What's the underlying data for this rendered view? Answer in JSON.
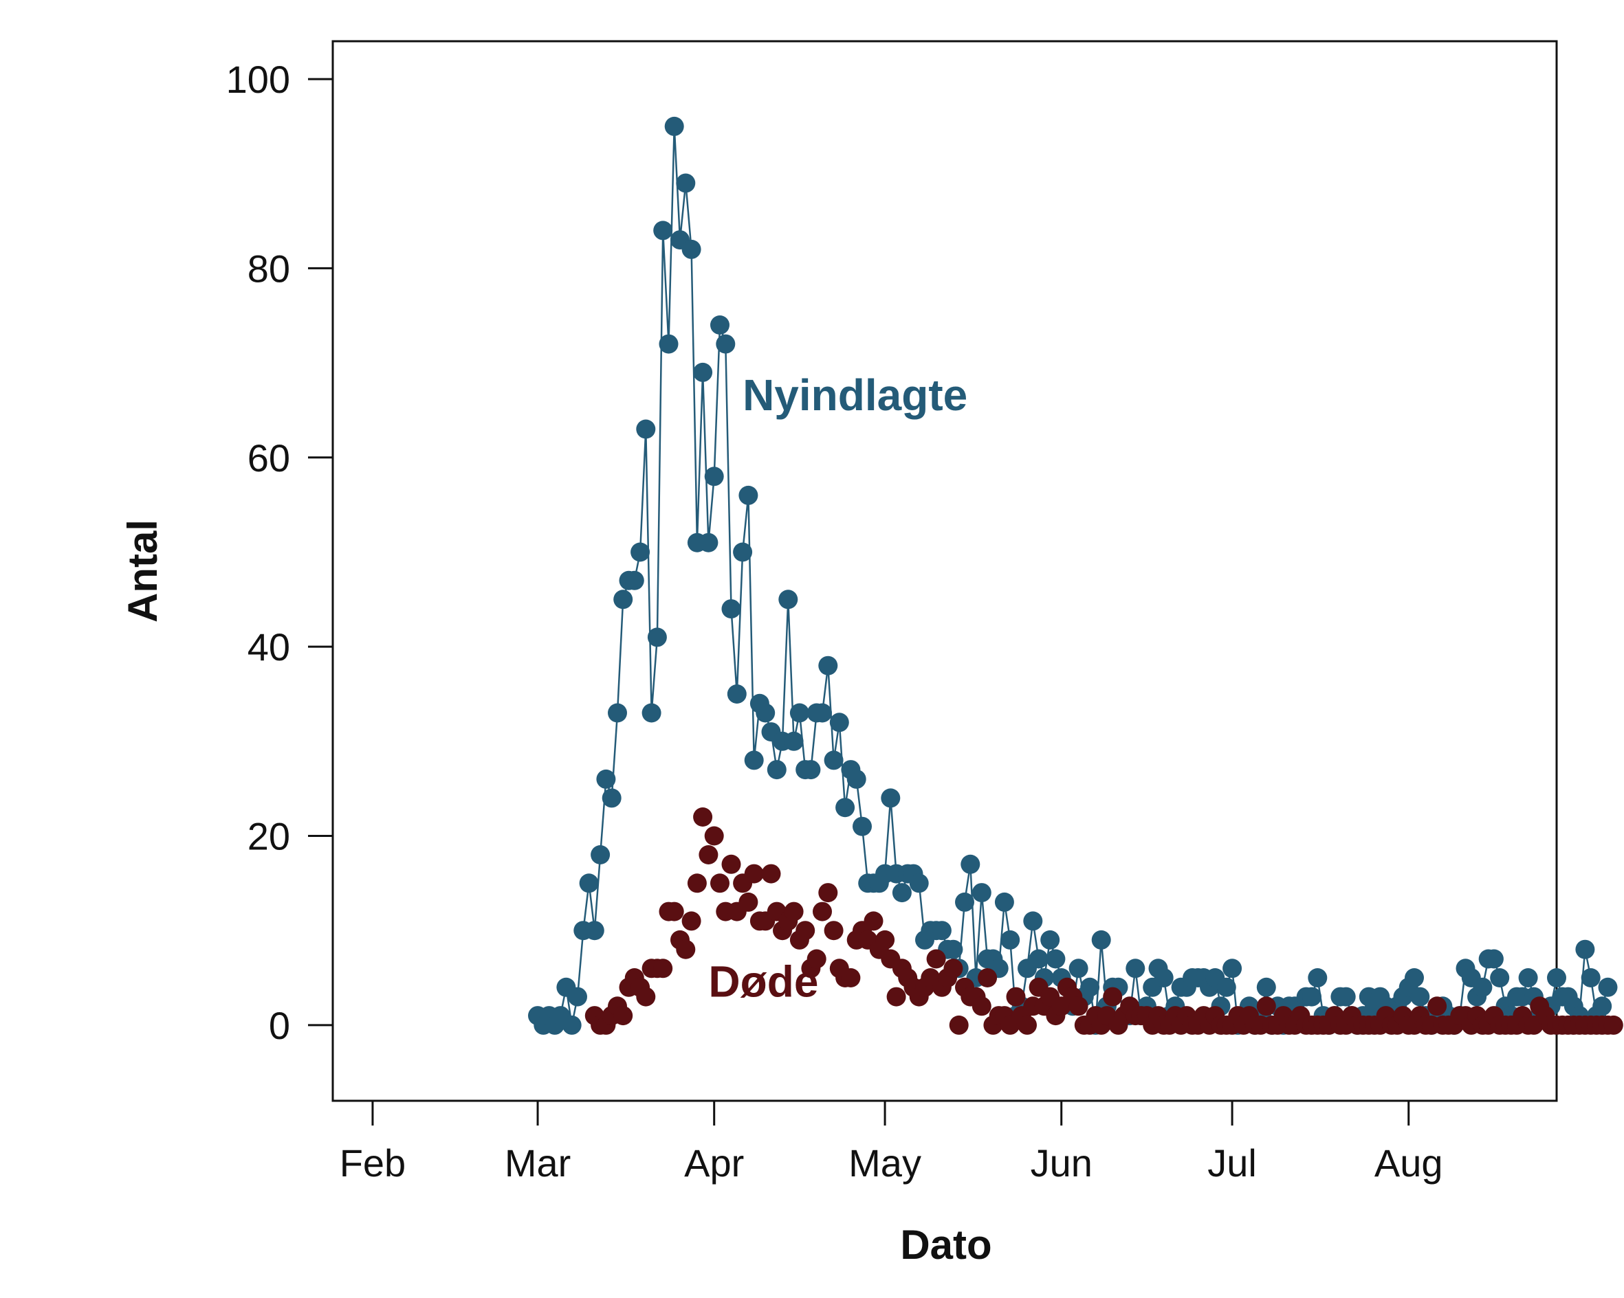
{
  "chart_data": {
    "type": "scatter",
    "xlabel": "Dato",
    "ylabel": "Antal",
    "x_ticks": [
      "Feb",
      "Mar",
      "Apr",
      "May",
      "Jun",
      "Jul",
      "Aug"
    ],
    "x_tick_dates": [
      "2020-02-01",
      "2020-03-01",
      "2020-04-01",
      "2020-05-01",
      "2020-06-01",
      "2020-07-01",
      "2020-08-01"
    ],
    "xlim": [
      "2020-01-25",
      "2020-08-27"
    ],
    "y_ticks": [
      "0",
      "20",
      "40",
      "60",
      "80",
      "100"
    ],
    "ylim": [
      -8,
      104
    ],
    "grid": false,
    "legend": "none",
    "series": [
      {
        "name": "Nyindlagte",
        "color": "#245b78",
        "connected": true,
        "start_date": "2020-03-01",
        "values": [
          1,
          0,
          1,
          0,
          1,
          4,
          0,
          3,
          10,
          15,
          10,
          18,
          26,
          24,
          33,
          45,
          47,
          47,
          50,
          63,
          33,
          41,
          84,
          72,
          95,
          83,
          89,
          82,
          51,
          69,
          51,
          58,
          74,
          72,
          44,
          35,
          50,
          56,
          28,
          34,
          33,
          31,
          27,
          30,
          45,
          30,
          33,
          27,
          27,
          33,
          33,
          38,
          28,
          32,
          23,
          27,
          26,
          21,
          15,
          15,
          15,
          16,
          24,
          16,
          14,
          16,
          16,
          15,
          9,
          10,
          10,
          10,
          8,
          8,
          6,
          13,
          17,
          5,
          14,
          7,
          7,
          6,
          13,
          9,
          1,
          2,
          6,
          11,
          7,
          5,
          9,
          7,
          5,
          4,
          2,
          6,
          3,
          4,
          0,
          9,
          2,
          4,
          4,
          1,
          1,
          6,
          1,
          2,
          4,
          6,
          5,
          1,
          2,
          4,
          4,
          5,
          5,
          5,
          4,
          5,
          2,
          4,
          6,
          0,
          1,
          2,
          0,
          1,
          4,
          0,
          2,
          0,
          2,
          2,
          1,
          3,
          3,
          5,
          1,
          0,
          1,
          3,
          3,
          1,
          0,
          1,
          3,
          2,
          3,
          2,
          1,
          2,
          3,
          4,
          5,
          3,
          1,
          0,
          1,
          2,
          1,
          0,
          1,
          6,
          5,
          3,
          4,
          7,
          7,
          5,
          2,
          1,
          3,
          3,
          5,
          3,
          1,
          1,
          2,
          5,
          3,
          3,
          2,
          1,
          8,
          5,
          1,
          2,
          4
        ]
      },
      {
        "name": "Døde",
        "color": "#5a0f12",
        "connected": false,
        "start_date": "2020-03-11",
        "values": [
          1,
          0,
          0,
          1,
          2,
          1,
          4,
          5,
          4,
          3,
          6,
          6,
          6,
          12,
          12,
          9,
          8,
          11,
          15,
          22,
          18,
          20,
          15,
          12,
          17,
          12,
          15,
          13,
          16,
          11,
          11,
          16,
          12,
          10,
          11,
          12,
          9,
          10,
          6,
          7,
          12,
          14,
          10,
          6,
          5,
          5,
          9,
          10,
          9,
          11,
          8,
          9,
          7,
          3,
          6,
          5,
          4,
          3,
          4,
          5,
          7,
          4,
          5,
          6,
          0,
          4,
          3,
          3,
          2,
          5,
          0,
          1,
          1,
          0,
          3,
          1,
          0,
          2,
          4,
          2,
          3,
          1,
          2,
          4,
          3,
          2,
          0,
          0,
          1,
          0,
          1,
          3,
          0,
          1,
          2,
          1,
          1,
          1,
          0,
          1,
          0,
          0,
          1,
          0,
          1,
          0,
          0,
          1,
          0,
          1,
          0,
          0,
          0,
          1,
          0,
          1,
          0,
          0,
          2,
          0,
          0,
          1,
          0,
          0,
          1,
          0,
          0,
          0,
          0,
          0,
          1,
          0,
          0,
          1,
          0,
          0,
          0,
          0,
          0,
          1,
          0,
          0,
          1,
          0,
          0,
          1,
          0,
          0,
          2,
          0,
          0,
          0,
          1,
          1,
          0,
          1,
          0,
          0,
          1,
          0,
          0,
          0,
          0,
          1,
          0,
          0,
          2,
          1,
          0,
          0,
          0,
          0,
          0,
          0,
          0,
          0,
          0,
          0,
          0,
          0
        ]
      }
    ],
    "annotations": [
      {
        "text": "Nyindlagte",
        "series": "Nyindlagte",
        "x": "2020-04-06",
        "y": 65
      },
      {
        "text": "Døde",
        "series": "Døde",
        "x": "2020-03-31",
        "y": 3
      }
    ]
  }
}
